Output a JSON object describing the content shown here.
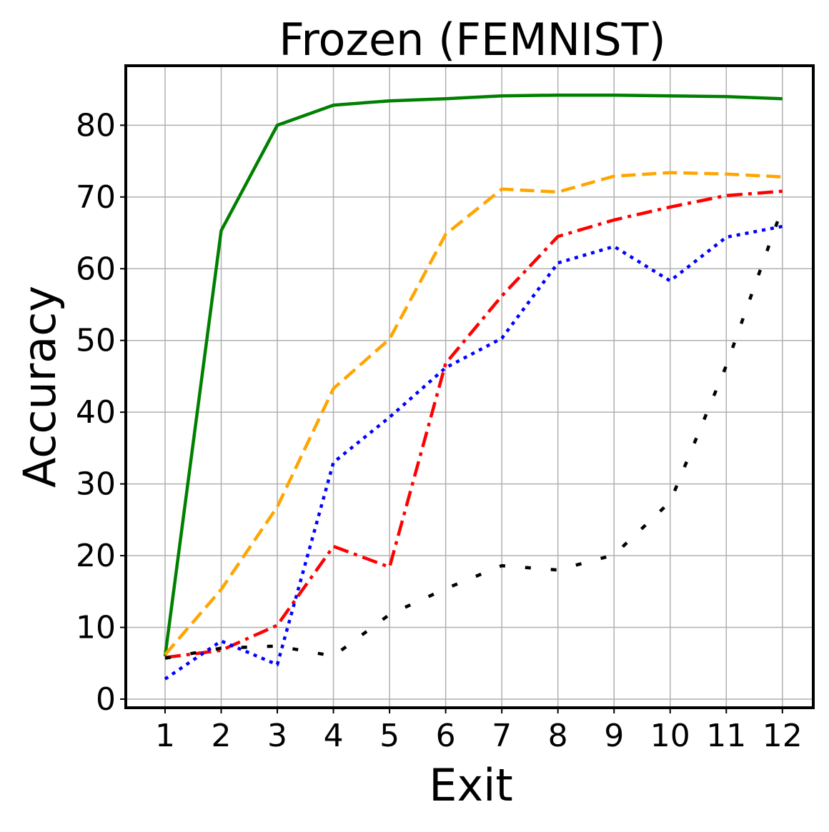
{
  "chart_data": {
    "type": "line",
    "title": "Frozen (FEMNIST)",
    "xlabel": "Exit",
    "ylabel": "Accuracy",
    "x": [
      1,
      2,
      3,
      4,
      5,
      6,
      7,
      8,
      9,
      10,
      11,
      12
    ],
    "x_tick_labels": [
      "1",
      "2",
      "3",
      "4",
      "5",
      "6",
      "7",
      "8",
      "9",
      "10",
      "11",
      "12"
    ],
    "y_ticks": [
      0,
      10,
      20,
      30,
      40,
      50,
      60,
      70,
      80
    ],
    "y_tick_labels": [
      "0",
      "10",
      "20",
      "30",
      "40",
      "50",
      "60",
      "70",
      "80"
    ],
    "xlim": [
      0.3,
      12.55
    ],
    "ylim": [
      -1.2,
      88.3
    ],
    "grid": true,
    "series": [
      {
        "color": "#008000",
        "dash": "solid",
        "values": [
          6.0,
          65.3,
          80.0,
          82.8,
          83.4,
          83.7,
          84.1,
          84.2,
          84.2,
          84.1,
          84.0,
          83.7
        ]
      },
      {
        "color": "#ffa500",
        "dash": "dashed",
        "values": [
          6.2,
          15.3,
          26.8,
          43.3,
          50.2,
          64.8,
          71.1,
          70.7,
          72.9,
          73.4,
          73.2,
          72.8
        ]
      },
      {
        "color": "#ff0000",
        "dash": "dashdot",
        "values": [
          5.8,
          6.8,
          10.3,
          21.3,
          18.4,
          46.8,
          56.2,
          64.5,
          66.8,
          68.6,
          70.2,
          70.8
        ]
      },
      {
        "color": "#0000ff",
        "dash": "dotted",
        "values": [
          2.8,
          8.1,
          4.8,
          33.0,
          39.3,
          46.2,
          50.3,
          60.8,
          63.1,
          58.3,
          64.4,
          65.9
        ]
      },
      {
        "color": "#000000",
        "dash": "loosedash",
        "values": [
          5.7,
          7.1,
          7.4,
          6.0,
          11.8,
          15.4,
          18.6,
          18.0,
          20.1,
          27.5,
          46.5,
          68.5
        ]
      }
    ]
  }
}
